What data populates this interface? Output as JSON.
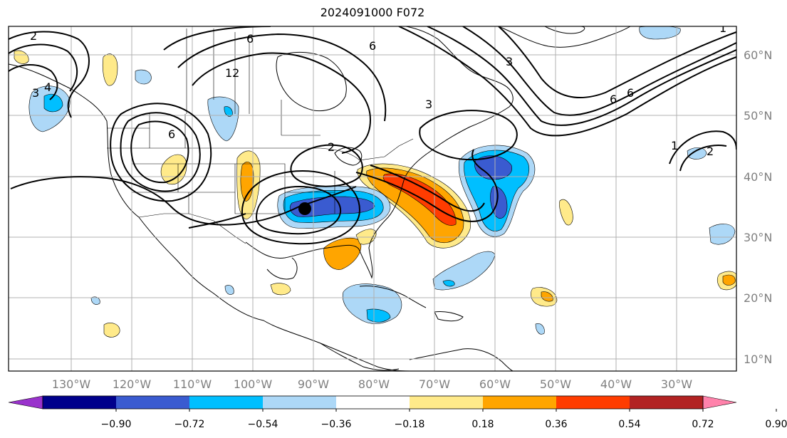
{
  "title": "2024091000 F072",
  "map": {
    "lat_labels": [
      "60°N",
      "50°N",
      "40°N",
      "30°N",
      "20°N",
      "10°N"
    ],
    "lon_labels": [
      "130°W",
      "120°W",
      "110°W",
      "100°W",
      "90°W",
      "80°W",
      "70°W",
      "60°W",
      "50°W",
      "40°W",
      "30°W"
    ],
    "contour_labels": [
      "2",
      "4",
      "3",
      "6",
      "6",
      "12",
      "6",
      "3",
      "3",
      "6",
      "6",
      "1",
      "2",
      "1",
      "2"
    ],
    "marker": "storm-center-dot"
  },
  "colorbar": {
    "tick_labels": [
      "−0.90",
      "−0.72",
      "−0.54",
      "−0.36",
      "−0.18",
      "0.18",
      "0.36",
      "0.54",
      "0.72",
      "0.90"
    ],
    "colors": [
      "#9932cc",
      "#00008b",
      "#3a5bd0",
      "#00bfff",
      "#add8f7",
      "#ffffff",
      "#ffea8a",
      "#ffa500",
      "#ff3c00",
      "#b22222",
      "#ff82ab"
    ]
  }
}
